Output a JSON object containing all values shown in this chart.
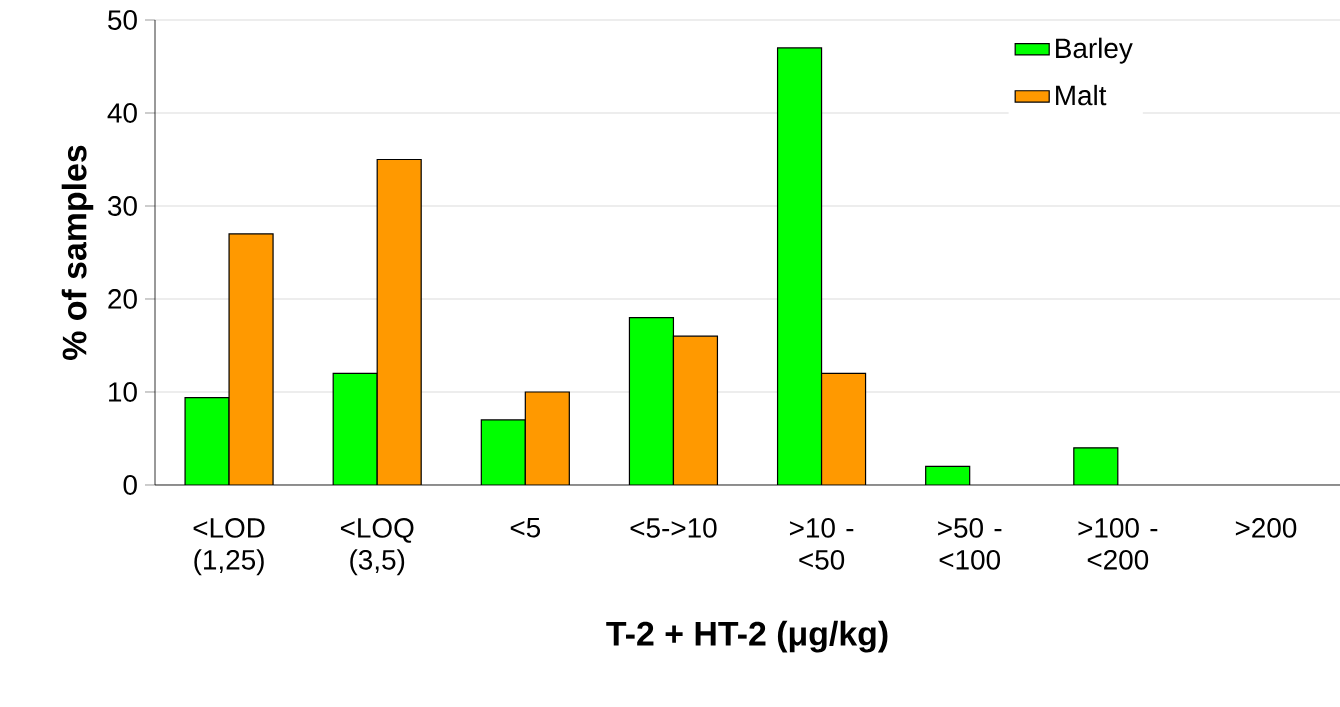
{
  "chart_data": {
    "type": "bar",
    "xlabel": "T-2 + HT-2 (μg/kg)",
    "ylabel": "% of samples",
    "categories": [
      "<LOD (1,25)",
      "<LOQ (3,5)",
      "<5",
      "<5->10",
      ">10 - <50",
      ">50 - <100",
      ">100 - <200",
      ">200"
    ],
    "series": [
      {
        "name": "Barley",
        "color": "#00ff00",
        "values": [
          9.4,
          12,
          7,
          18,
          47,
          2,
          4,
          null
        ]
      },
      {
        "name": "Malt",
        "color": "#ff9900",
        "values": [
          27,
          35,
          10,
          16,
          12,
          null,
          null,
          null
        ]
      }
    ],
    "ylim": [
      0,
      50
    ],
    "yticks": [
      0,
      10,
      20,
      30,
      40,
      50
    ],
    "grid": "y",
    "legend": "top right"
  }
}
